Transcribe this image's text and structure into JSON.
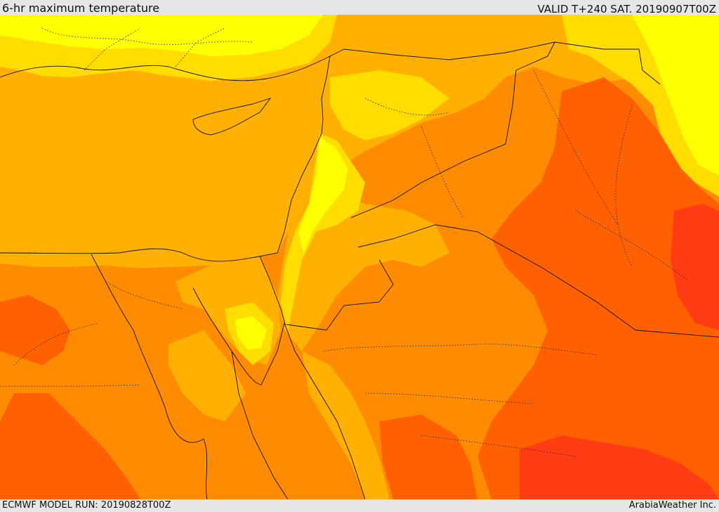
{
  "header": {
    "title": "6-hr maximum temperature",
    "valid_time": "VALID T+240 SAT. 20190907T00Z"
  },
  "footer": {
    "model_run": "ECMWF MODEL RUN: 20190828T00Z",
    "credit": "ArabiaWeather Inc."
  },
  "map": {
    "colors": {
      "coldest": "#ffff00",
      "cool": "#ffdd00",
      "mild": "#ffb000",
      "warm": "#ff8c00",
      "hot": "#ff6000",
      "hottest": "#ff3c14"
    }
  }
}
